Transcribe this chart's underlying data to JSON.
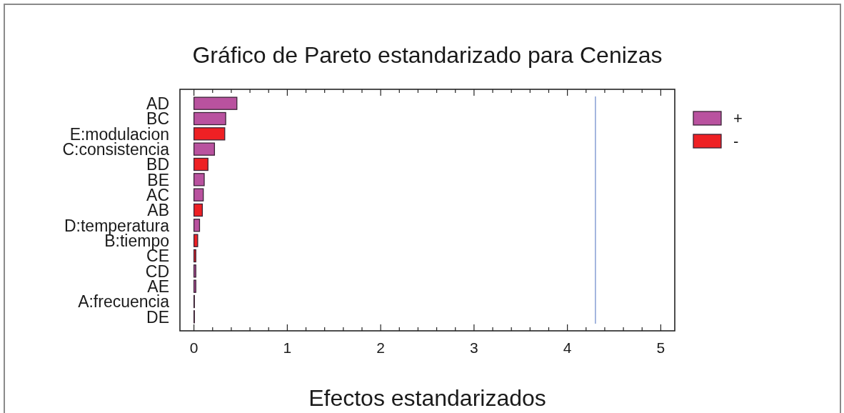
{
  "chart_data": {
    "type": "bar",
    "orientation": "horizontal",
    "stacked": true,
    "title": "Gráfico de Pareto estandarizado para Cenizas",
    "xlabel": "Efectos estandarizados",
    "categories": [
      "AD",
      "BC",
      "E:modulacion",
      "C:consistencia",
      "BD",
      "BE",
      "AC",
      "AB",
      "D:temperatura",
      "B:tiempo",
      "CE",
      "CD",
      "AE",
      "A:frecuencia",
      "DE"
    ],
    "series": [
      {
        "name": "+",
        "color": "#b9529f",
        "values": [
          0.46,
          0.34,
          null,
          0.22,
          null,
          0.11,
          0.1,
          null,
          0.06,
          null,
          null,
          0.02,
          0.02,
          null,
          null
        ]
      },
      {
        "name": "-",
        "color": "#ee2024",
        "values": [
          null,
          null,
          0.33,
          null,
          0.15,
          null,
          null,
          0.09,
          null,
          0.04,
          0.02,
          null,
          null,
          0.005,
          0.005
        ]
      }
    ],
    "xlim": [
      -0.15,
      5.15
    ],
    "xticks": [
      0,
      {
        "value": 0.2,
        "label": null
      },
      {
        "value": 0.4,
        "label": null
      },
      {
        "value": 0.6,
        "label": null
      },
      {
        "value": 0.8,
        "label": null
      },
      1,
      {
        "value": 1.2,
        "label": null
      },
      {
        "value": 1.4,
        "label": null
      },
      {
        "value": 1.6,
        "label": null
      },
      {
        "value": 1.8,
        "label": null
      },
      2,
      {
        "value": 2.2,
        "label": null
      },
      {
        "value": 2.4,
        "label": null
      },
      {
        "value": 2.6,
        "label": null
      },
      {
        "value": 2.8,
        "label": null
      },
      3,
      {
        "value": 3.2,
        "label": null
      },
      {
        "value": 3.4,
        "label": null
      },
      {
        "value": 3.6,
        "label": null
      },
      {
        "value": 3.8,
        "label": null
      },
      4,
      {
        "value": 4.2,
        "label": null
      },
      {
        "value": 4.4,
        "label": null
      },
      {
        "value": 4.6,
        "label": null
      },
      {
        "value": 4.8,
        "label": null
      },
      5
    ],
    "ref_lines": [
      {
        "axis": "x",
        "value": 4.3,
        "color": "#8ea4d6"
      }
    ],
    "legend": "top right"
  }
}
